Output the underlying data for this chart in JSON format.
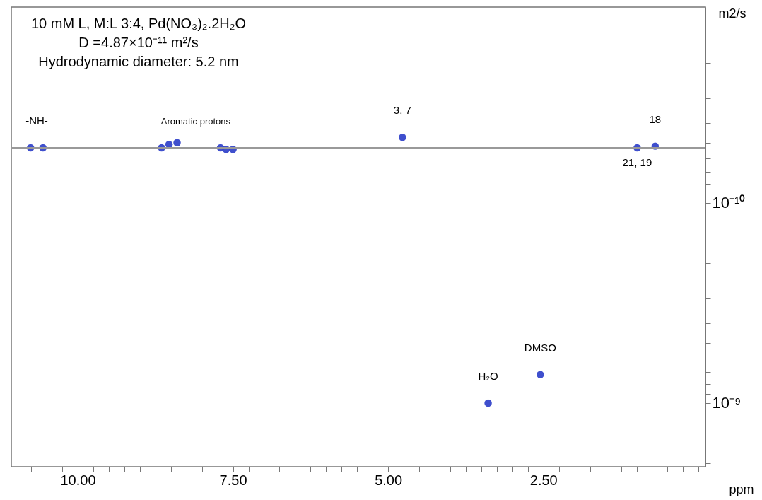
{
  "chart_data": {
    "type": "scatter",
    "title": "10 mM L, M:L 3:4, Pd(NO₃)₂.2H₂O",
    "subtitle": "D =4.87×10⁻¹¹ m²/s\nHydrodynamic diameter: 5.2 nm",
    "xlabel": "ppm",
    "ylabel": "m2/s",
    "x": [
      10.76,
      10.56,
      8.65,
      8.53,
      8.4,
      7.7,
      7.61,
      7.5,
      4.77,
      0.99,
      0.7,
      3.39,
      2.55
    ],
    "values": [
      5.3e-11,
      5.3e-11,
      5.3e-11,
      5.1e-11,
      5e-11,
      5.3e-11,
      5.4e-11,
      5.4e-11,
      4.7e-11,
      5.3e-11,
      5.2e-11,
      1e-09,
      7.2e-10
    ],
    "color": "#2a3cc8",
    "marker": "circle",
    "log": "y",
    "xlim": [
      11.07,
      -0.11
    ],
    "ylim": [
      2.08e-09,
      1.05e-11
    ],
    "xticks": [
      {
        "value": 11,
        "label": null
      },
      {
        "value": 10.75,
        "label": null
      },
      {
        "value": 10.5,
        "label": null
      },
      {
        "value": 10.25,
        "label": null
      },
      {
        "value": 10,
        "label": "10.00"
      },
      {
        "value": 9.75,
        "label": null
      },
      {
        "value": 9.5,
        "label": null
      },
      {
        "value": 9.25,
        "label": null
      },
      {
        "value": 9,
        "label": null
      },
      {
        "value": 8.75,
        "label": null
      },
      {
        "value": 8.5,
        "label": null
      },
      {
        "value": 8.25,
        "label": null
      },
      {
        "value": 8,
        "label": null
      },
      {
        "value": 7.75,
        "label": null
      },
      {
        "value": 7.5,
        "label": "7.50"
      },
      {
        "value": 7.25,
        "label": null
      },
      {
        "value": 7,
        "label": null
      },
      {
        "value": 6.75,
        "label": null
      },
      {
        "value": 6.5,
        "label": null
      },
      {
        "value": 6.25,
        "label": null
      },
      {
        "value": 6,
        "label": null
      },
      {
        "value": 5.75,
        "label": null
      },
      {
        "value": 5.5,
        "label": null
      },
      {
        "value": 5.25,
        "label": null
      },
      {
        "value": 5,
        "label": "5.00"
      },
      {
        "value": 4.75,
        "label": null
      },
      {
        "value": 4.5,
        "label": null
      },
      {
        "value": 4.25,
        "label": null
      },
      {
        "value": 4,
        "label": null
      },
      {
        "value": 3.75,
        "label": null
      },
      {
        "value": 3.5,
        "label": null
      },
      {
        "value": 3.25,
        "label": null
      },
      {
        "value": 3,
        "label": null
      },
      {
        "value": 2.75,
        "label": null
      },
      {
        "value": 2.5,
        "label": "2.50"
      },
      {
        "value": 2.25,
        "label": null
      },
      {
        "value": 2,
        "label": null
      },
      {
        "value": 1.75,
        "label": null
      },
      {
        "value": 1.5,
        "label": null
      },
      {
        "value": 1.25,
        "label": null
      },
      {
        "value": 1,
        "label": null
      },
      {
        "value": 0.75,
        "label": null
      },
      {
        "value": 0.5,
        "label": null
      },
      {
        "value": 0.25,
        "label": null
      },
      {
        "value": 0,
        "label": null
      }
    ],
    "yticks": [
      {
        "value": 2e-11,
        "label": null
      },
      {
        "value": 3e-11,
        "label": null
      },
      {
        "value": 4e-11,
        "label": null
      },
      {
        "value": 5e-11,
        "label": null
      },
      {
        "value": 6e-11,
        "label": null
      },
      {
        "value": 7e-11,
        "label": null
      },
      {
        "value": 8e-11,
        "label": null
      },
      {
        "value": 9e-11,
        "label": null
      },
      {
        "value": 1e-10,
        "label": "10⁻¹⁰"
      },
      {
        "value": 2e-10,
        "label": null
      },
      {
        "value": 3e-10,
        "label": null
      },
      {
        "value": 4e-10,
        "label": null
      },
      {
        "value": 5e-10,
        "label": null
      },
      {
        "value": 6e-10,
        "label": null
      },
      {
        "value": 7e-10,
        "label": null
      },
      {
        "value": 8e-10,
        "label": null
      },
      {
        "value": 9e-10,
        "label": null
      },
      {
        "value": 1e-09,
        "label": "10⁻⁹"
      },
      {
        "value": 2e-09,
        "label": null
      }
    ],
    "ref_lines": [
      {
        "axis": "y",
        "value": 5.3e-11,
        "color": "#999999"
      }
    ],
    "annotations": [
      {
        "text": "-NH-",
        "x": 10.66,
        "y": 5.3e-11
      },
      {
        "text": "Aromatic protons",
        "x": 8.1,
        "y": 5.3e-11
      },
      {
        "text": "3, 7",
        "x": 4.77,
        "y": 4.7e-11
      },
      {
        "text": "18",
        "x": 0.7,
        "y": 5.2e-11
      },
      {
        "text": "21, 19",
        "x": 0.99,
        "y": 5.3e-11
      },
      {
        "text": "H₂O",
        "x": 3.39,
        "y": 1e-09
      },
      {
        "text": "DMSO",
        "x": 2.55,
        "y": 7.2e-10
      }
    ]
  }
}
